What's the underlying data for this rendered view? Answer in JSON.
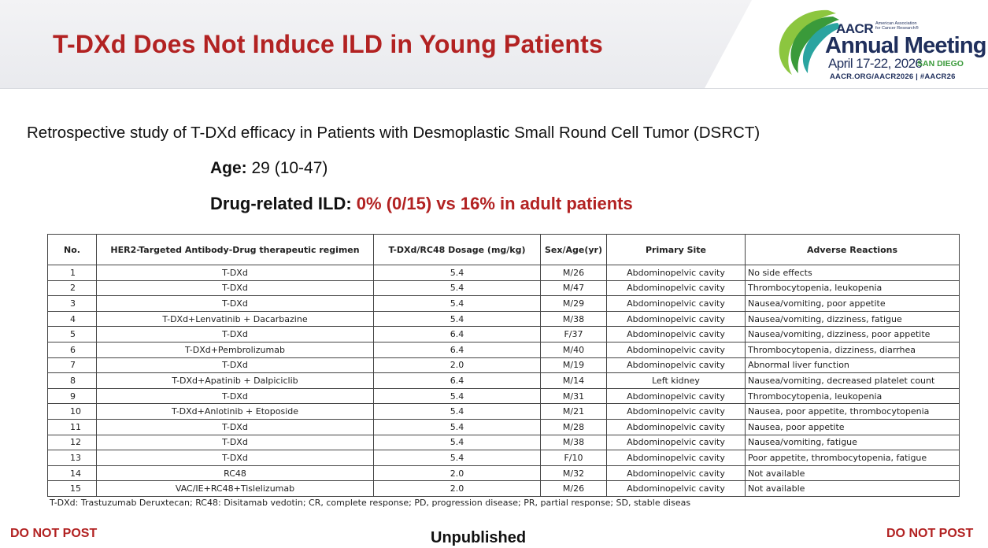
{
  "slide": {
    "title": "T-DXd Does Not Induce ILD in Young Patients",
    "subtitle": "Retrospective study of T-DXd efficacy in Patients with Desmoplastic Small Round Cell Tumor (DSRCT)",
    "age_label": "Age:",
    "age_value": " 29 (10-47)",
    "ild_label": "Drug-related ILD: ",
    "ild_value": "0% (0/15) vs 16% in adult patients"
  },
  "logo": {
    "org_short": "AACR",
    "org_full": "American Association for Cancer Research®",
    "event": "Annual Meeting",
    "dates": "April 17-22, 2026",
    "city": "SAN DIEGO",
    "links": "AACR.ORG/AACR2026 | #AACR26",
    "colors": {
      "navy": "#1f2f5c",
      "green": "#3a9a3a",
      "lime": "#8cc63f",
      "teal": "#2aa4a0"
    }
  },
  "table": {
    "headers": [
      "No.",
      "HER2-Targeted Antibody-Drug therapeutic regimen",
      "T-DXd/RC48 Dosage (mg/kg)",
      "Sex/Age(yr)",
      "Primary Site",
      "Adverse Reactions"
    ],
    "rows": [
      [
        "1",
        "T-DXd",
        "5.4",
        "M/26",
        "Abdominopelvic cavity",
        "No side effects"
      ],
      [
        "2",
        "T-DXd",
        "5.4",
        "M/47",
        "Abdominopelvic cavity",
        "Thrombocytopenia, leukopenia"
      ],
      [
        "3",
        "T-DXd",
        "5.4",
        "M/29",
        "Abdominopelvic cavity",
        "Nausea/vomiting, poor appetite"
      ],
      [
        "4",
        "T-DXd+Lenvatinib + Dacarbazine",
        "5.4",
        "M/38",
        "Abdominopelvic cavity",
        "Nausea/vomiting, dizziness, fatigue"
      ],
      [
        "5",
        "T-DXd",
        "6.4",
        "F/37",
        "Abdominopelvic cavity",
        "Nausea/vomiting, dizziness, poor appetite"
      ],
      [
        "6",
        "T-DXd+Pembrolizumab",
        "6.4",
        "M/40",
        "Abdominopelvic cavity",
        "Thrombocytopenia, dizziness, diarrhea"
      ],
      [
        "7",
        "T-DXd",
        "2.0",
        "M/19",
        "Abdominopelvic cavity",
        "Abnormal liver function"
      ],
      [
        "8",
        "T-DXd+Apatinib + Dalpiciclib",
        "6.4",
        "M/14",
        "Left kidney",
        "Nausea/vomiting, decreased platelet count"
      ],
      [
        "9",
        "T-DXd",
        "5.4",
        "M/31",
        "Abdominopelvic cavity",
        "Thrombocytopenia, leukopenia"
      ],
      [
        "10",
        "T-DXd+Anlotinib + Etoposide",
        "5.4",
        "M/21",
        "Abdominopelvic cavity",
        "Nausea, poor appetite, thrombocytopenia"
      ],
      [
        "11",
        "T-DXd",
        "5.4",
        "M/28",
        "Abdominopelvic cavity",
        "Nausea, poor appetite"
      ],
      [
        "12",
        "T-DXd",
        "5.4",
        "M/38",
        "Abdominopelvic cavity",
        "Nausea/vomiting, fatigue"
      ],
      [
        "13",
        "T-DXd",
        "5.4",
        "F/10",
        "Abdominopelvic cavity",
        "Poor appetite, thrombocytopenia, fatigue"
      ],
      [
        "14",
        "RC48",
        "2.0",
        "M/32",
        "Abdominopelvic cavity",
        "Not available"
      ],
      [
        "15",
        "VAC/IE+RC48+Tislelizumab",
        "2.0",
        "M/26",
        "Abdominopelvic cavity",
        "Not available"
      ]
    ]
  },
  "footnote": "T-DXd: Trastuzumab Deruxtecan; RC48: Disitamab vedotin; CR, complete response; PD, progression disease; PR, partial response; SD, stable diseas",
  "footer": {
    "do_not_post_left": "DO NOT POST",
    "unpublished": "Unpublished",
    "do_not_post_right": "DO NOT POST"
  }
}
